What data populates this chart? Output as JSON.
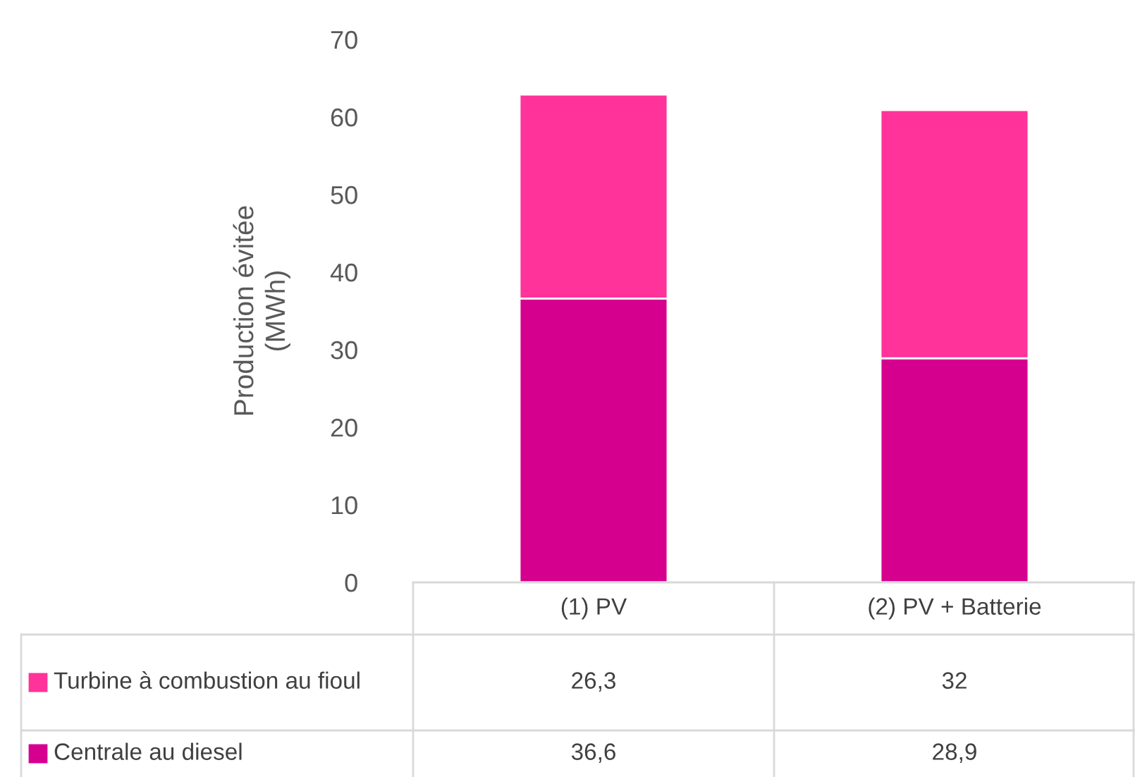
{
  "chart_data": {
    "type": "bar",
    "stacked": true,
    "ylabel": "Production évitée\n(MWh)",
    "categories": [
      "(1) PV",
      "(2) PV + Batterie"
    ],
    "series": [
      {
        "name": "Centrale au diesel",
        "color": "#d6008f",
        "values": [
          36.6,
          28.9
        ],
        "value_labels": [
          "36,6",
          "28,9"
        ]
      },
      {
        "name": "Turbine à combustion au fioul",
        "color": "#ff3399",
        "values": [
          26.3,
          32
        ],
        "value_labels": [
          "26,3",
          "32"
        ]
      }
    ],
    "ylim": [
      0,
      70
    ],
    "yticks": [
      0,
      10,
      20,
      30,
      40,
      50,
      60,
      70
    ],
    "grid": false,
    "legend": "bottom"
  }
}
